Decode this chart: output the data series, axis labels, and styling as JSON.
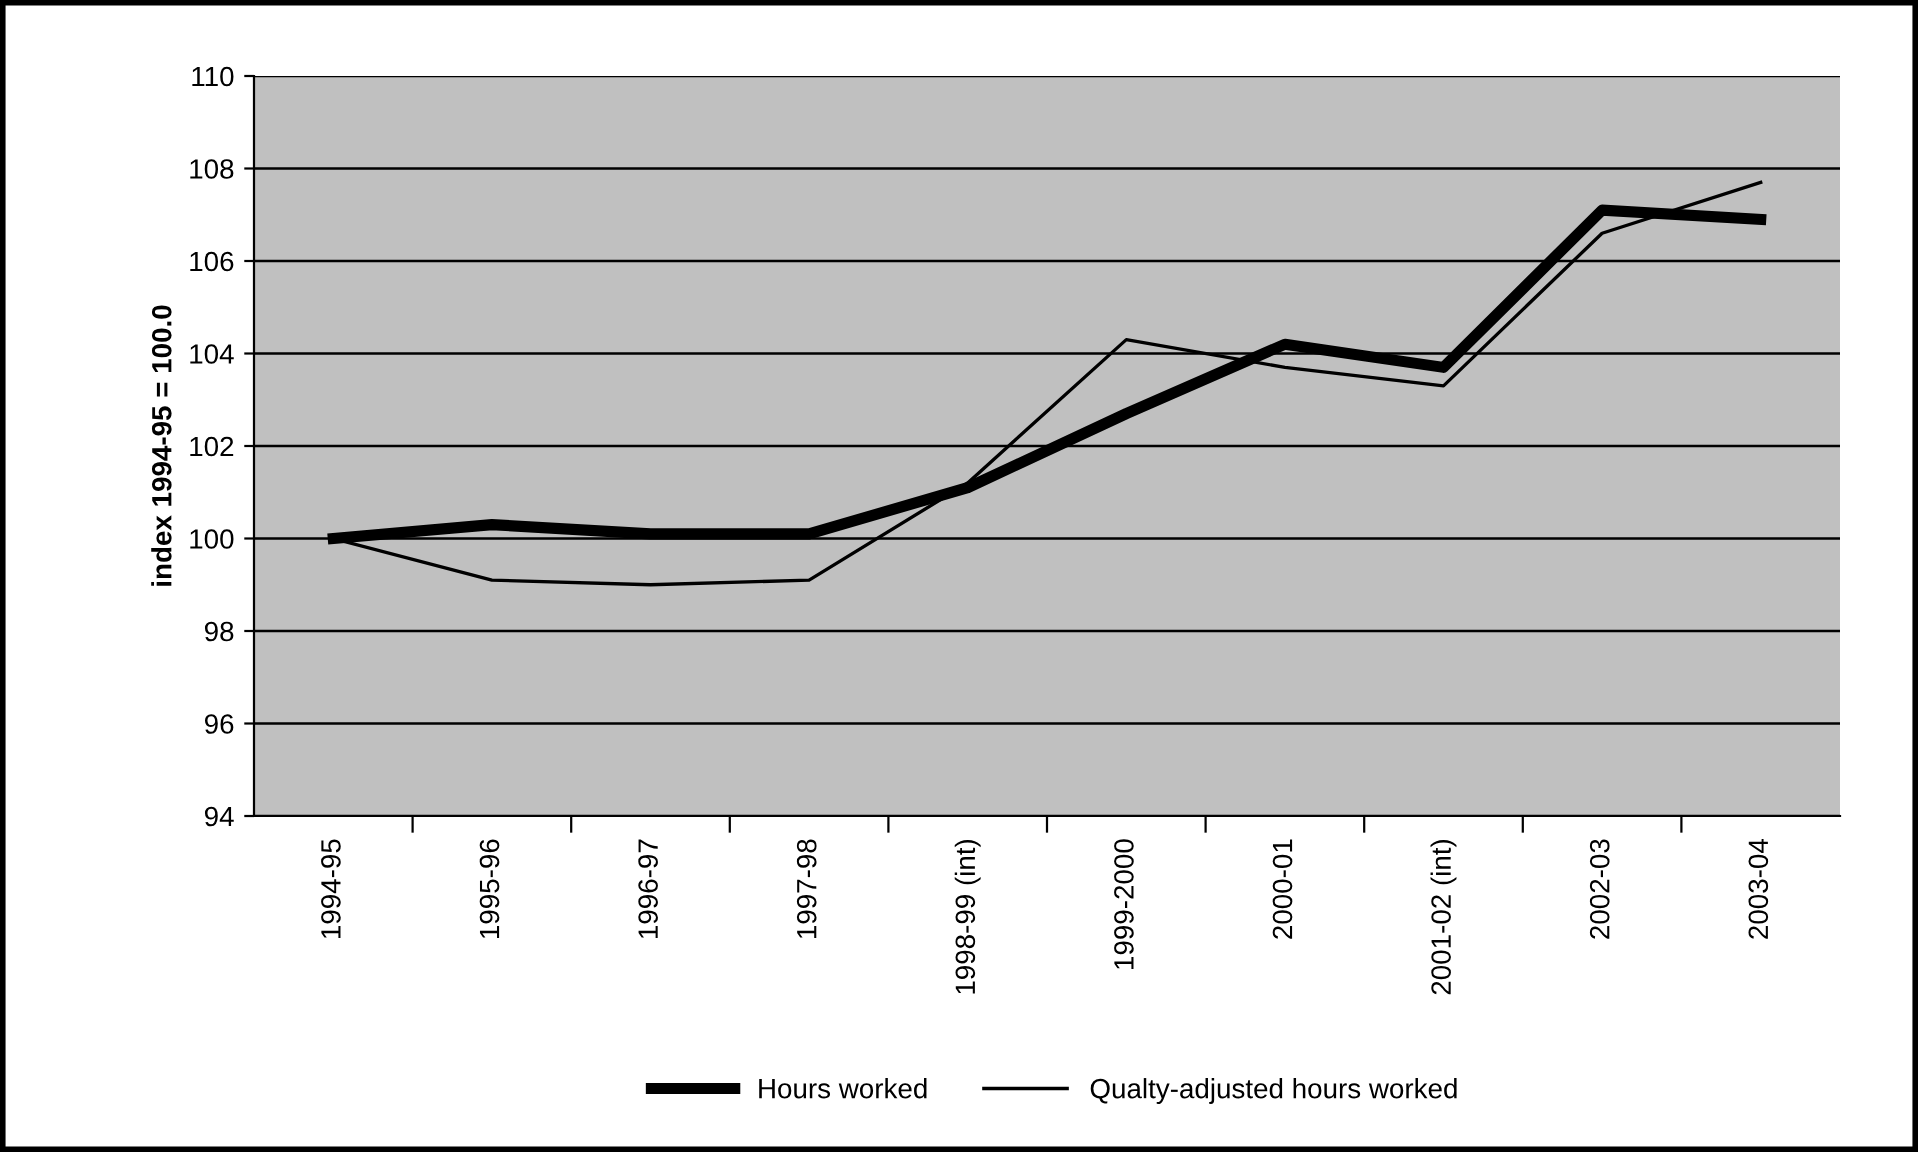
{
  "chart_data": {
    "type": "line",
    "ylabel": "index 1994-95 = 100.0",
    "categories": [
      "1994-95",
      "1995-96",
      "1996-97",
      "1997-98",
      "1998-99 (int)",
      "1999-2000",
      "2000-01",
      "2001-02 (int)",
      "2002-03",
      "2003-04"
    ],
    "series": [
      {
        "name": "Hours worked",
        "color": "#000000",
        "values": [
          100.0,
          100.3,
          100.1,
          100.1,
          101.1,
          102.7,
          104.2,
          103.7,
          107.1,
          106.9
        ]
      },
      {
        "name": "Qualty-adjusted hours worked",
        "color": "#000000",
        "values": [
          100.0,
          99.1,
          99.0,
          99.1,
          101.2,
          104.3,
          103.7,
          103.3,
          106.6,
          107.7
        ]
      }
    ],
    "ylim": [
      94,
      110
    ],
    "yticks": [
      94,
      96,
      98,
      100,
      102,
      104,
      106,
      108,
      110
    ],
    "grid": "y",
    "legend": "bottom",
    "marker": "none",
    "line_style": "solid"
  }
}
